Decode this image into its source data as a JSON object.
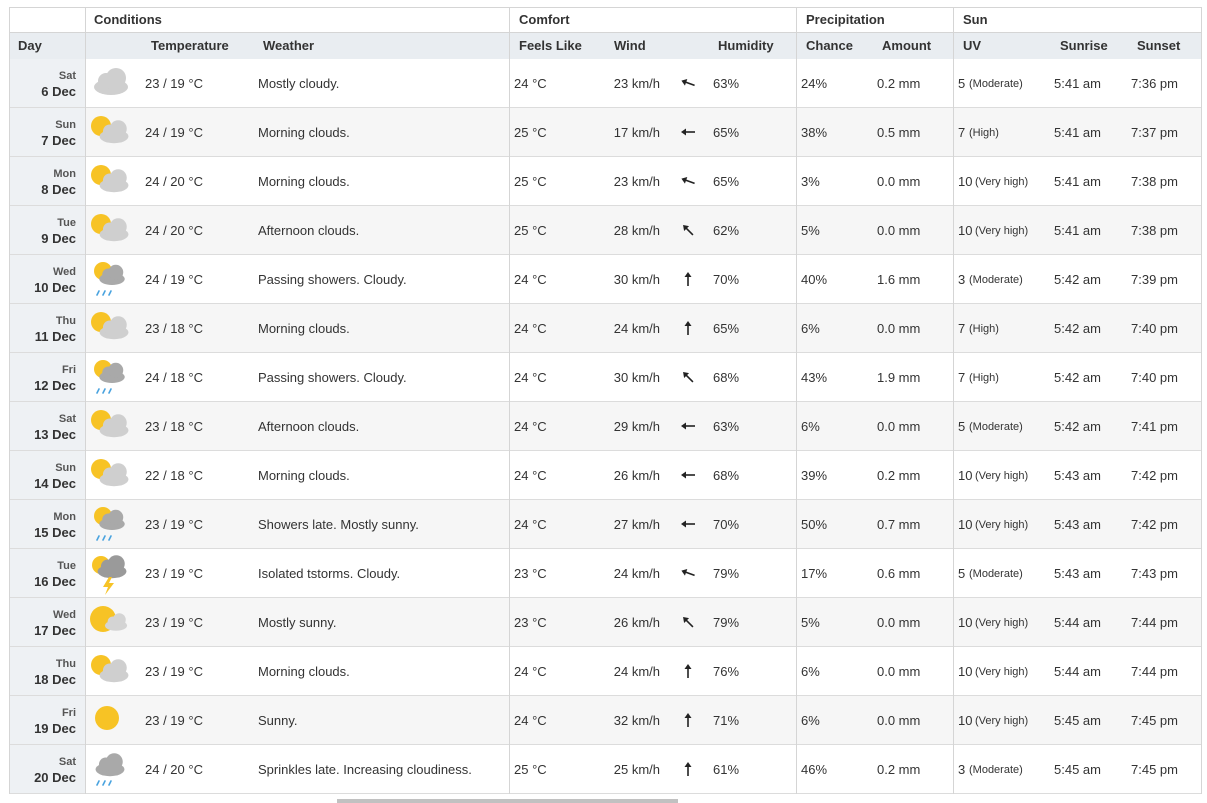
{
  "table": {
    "groups": [
      "Conditions",
      "Comfort",
      "Precipitation",
      "Sun"
    ],
    "columns": [
      "Day",
      "Temperature",
      "Weather",
      "Feels Like",
      "Wind",
      "Humidity",
      "Chance",
      "Amount",
      "UV",
      "Sunrise",
      "Sunset"
    ],
    "rows": [
      {
        "weekday": "Sat",
        "date": "6 Dec",
        "temp": "23 / 19 °C",
        "weather": "Mostly cloudy.",
        "feels": "24 °C",
        "wind": "23 km/h",
        "humidity": "63%",
        "chance": "24%",
        "amount": "0.2 mm",
        "uv": "5",
        "uv_label": "(Moderate)",
        "sunrise": "5:41 am",
        "sunset": "7:36 pm"
      },
      {
        "weekday": "Sun",
        "date": "7 Dec",
        "temp": "24 / 19 °C",
        "weather": "Morning clouds.",
        "feels": "25 °C",
        "wind": "17 km/h",
        "humidity": "65%",
        "chance": "38%",
        "amount": "0.5 mm",
        "uv": "7",
        "uv_label": "(High)",
        "sunrise": "5:41 am",
        "sunset": "7:37 pm"
      },
      {
        "weekday": "Mon",
        "date": "8 Dec",
        "temp": "24 / 20 °C",
        "weather": "Morning clouds.",
        "feels": "25 °C",
        "wind": "23 km/h",
        "humidity": "65%",
        "chance": "3%",
        "amount": "0.0 mm",
        "uv": "10",
        "uv_label": "(Very high)",
        "sunrise": "5:41 am",
        "sunset": "7:38 pm"
      },
      {
        "weekday": "Tue",
        "date": "9 Dec",
        "temp": "24 / 20 °C",
        "weather": "Afternoon clouds.",
        "feels": "25 °C",
        "wind": "28 km/h",
        "humidity": "62%",
        "chance": "5%",
        "amount": "0.0 mm",
        "uv": "10",
        "uv_label": "(Very high)",
        "sunrise": "5:41 am",
        "sunset": "7:38 pm"
      },
      {
        "weekday": "Wed",
        "date": "10 Dec",
        "temp": "24 / 19 °C",
        "weather": "Passing showers. Cloudy.",
        "feels": "24 °C",
        "wind": "30 km/h",
        "humidity": "70%",
        "chance": "40%",
        "amount": "1.6 mm",
        "uv": "3",
        "uv_label": "(Moderate)",
        "sunrise": "5:42 am",
        "sunset": "7:39 pm"
      },
      {
        "weekday": "Thu",
        "date": "11 Dec",
        "temp": "23 / 18 °C",
        "weather": "Morning clouds.",
        "feels": "24 °C",
        "wind": "24 km/h",
        "humidity": "65%",
        "chance": "6%",
        "amount": "0.0 mm",
        "uv": "7",
        "uv_label": "(High)",
        "sunrise": "5:42 am",
        "sunset": "7:40 pm"
      },
      {
        "weekday": "Fri",
        "date": "12 Dec",
        "temp": "24 / 18 °C",
        "weather": "Passing showers. Cloudy.",
        "feels": "24 °C",
        "wind": "30 km/h",
        "humidity": "68%",
        "chance": "43%",
        "amount": "1.9 mm",
        "uv": "7",
        "uv_label": "(High)",
        "sunrise": "5:42 am",
        "sunset": "7:40 pm"
      },
      {
        "weekday": "Sat",
        "date": "13 Dec",
        "temp": "23 / 18 °C",
        "weather": "Afternoon clouds.",
        "feels": "24 °C",
        "wind": "29 km/h",
        "humidity": "63%",
        "chance": "6%",
        "amount": "0.0 mm",
        "uv": "5",
        "uv_label": "(Moderate)",
        "sunrise": "5:42 am",
        "sunset": "7:41 pm"
      },
      {
        "weekday": "Sun",
        "date": "14 Dec",
        "temp": "22 / 18 °C",
        "weather": "Morning clouds.",
        "feels": "24 °C",
        "wind": "26 km/h",
        "humidity": "68%",
        "chance": "39%",
        "amount": "0.2 mm",
        "uv": "10",
        "uv_label": "(Very high)",
        "sunrise": "5:43 am",
        "sunset": "7:42 pm"
      },
      {
        "weekday": "Mon",
        "date": "15 Dec",
        "temp": "23 / 19 °C",
        "weather": "Showers late. Mostly sunny.",
        "feels": "24 °C",
        "wind": "27 km/h",
        "humidity": "70%",
        "chance": "50%",
        "amount": "0.7 mm",
        "uv": "10",
        "uv_label": "(Very high)",
        "sunrise": "5:43 am",
        "sunset": "7:42 pm"
      },
      {
        "weekday": "Tue",
        "date": "16 Dec",
        "temp": "23 / 19 °C",
        "weather": "Isolated tstorms. Cloudy.",
        "feels": "23 °C",
        "wind": "24 km/h",
        "humidity": "79%",
        "chance": "17%",
        "amount": "0.6 mm",
        "uv": "5",
        "uv_label": "(Moderate)",
        "sunrise": "5:43 am",
        "sunset": "7:43 pm"
      },
      {
        "weekday": "Wed",
        "date": "17 Dec",
        "temp": "23 / 19 °C",
        "weather": "Mostly sunny.",
        "feels": "23 °C",
        "wind": "26 km/h",
        "humidity": "79%",
        "chance": "5%",
        "amount": "0.0 mm",
        "uv": "10",
        "uv_label": "(Very high)",
        "sunrise": "5:44 am",
        "sunset": "7:44 pm"
      },
      {
        "weekday": "Thu",
        "date": "18 Dec",
        "temp": "23 / 19 °C",
        "weather": "Morning clouds.",
        "feels": "24 °C",
        "wind": "24 km/h",
        "humidity": "76%",
        "chance": "6%",
        "amount": "0.0 mm",
        "uv": "10",
        "uv_label": "(Very high)",
        "sunrise": "5:44 am",
        "sunset": "7:44 pm"
      },
      {
        "weekday": "Fri",
        "date": "19 Dec",
        "temp": "23 / 19 °C",
        "weather": "Sunny.",
        "feels": "24 °C",
        "wind": "32 km/h",
        "humidity": "71%",
        "chance": "6%",
        "amount": "0.0 mm",
        "uv": "10",
        "uv_label": "(Very high)",
        "sunrise": "5:45 am",
        "sunset": "7:45 pm"
      },
      {
        "weekday": "Sat",
        "date": "20 Dec",
        "temp": "24 / 20 °C",
        "weather": "Sprinkles late. Increasing cloudiness.",
        "feels": "25 °C",
        "wind": "25 km/h",
        "humidity": "61%",
        "chance": "46%",
        "amount": "0.2 mm",
        "uv": "3",
        "uv_label": "(Moderate)",
        "sunrise": "5:45 am",
        "sunset": "7:45 pm"
      }
    ]
  }
}
